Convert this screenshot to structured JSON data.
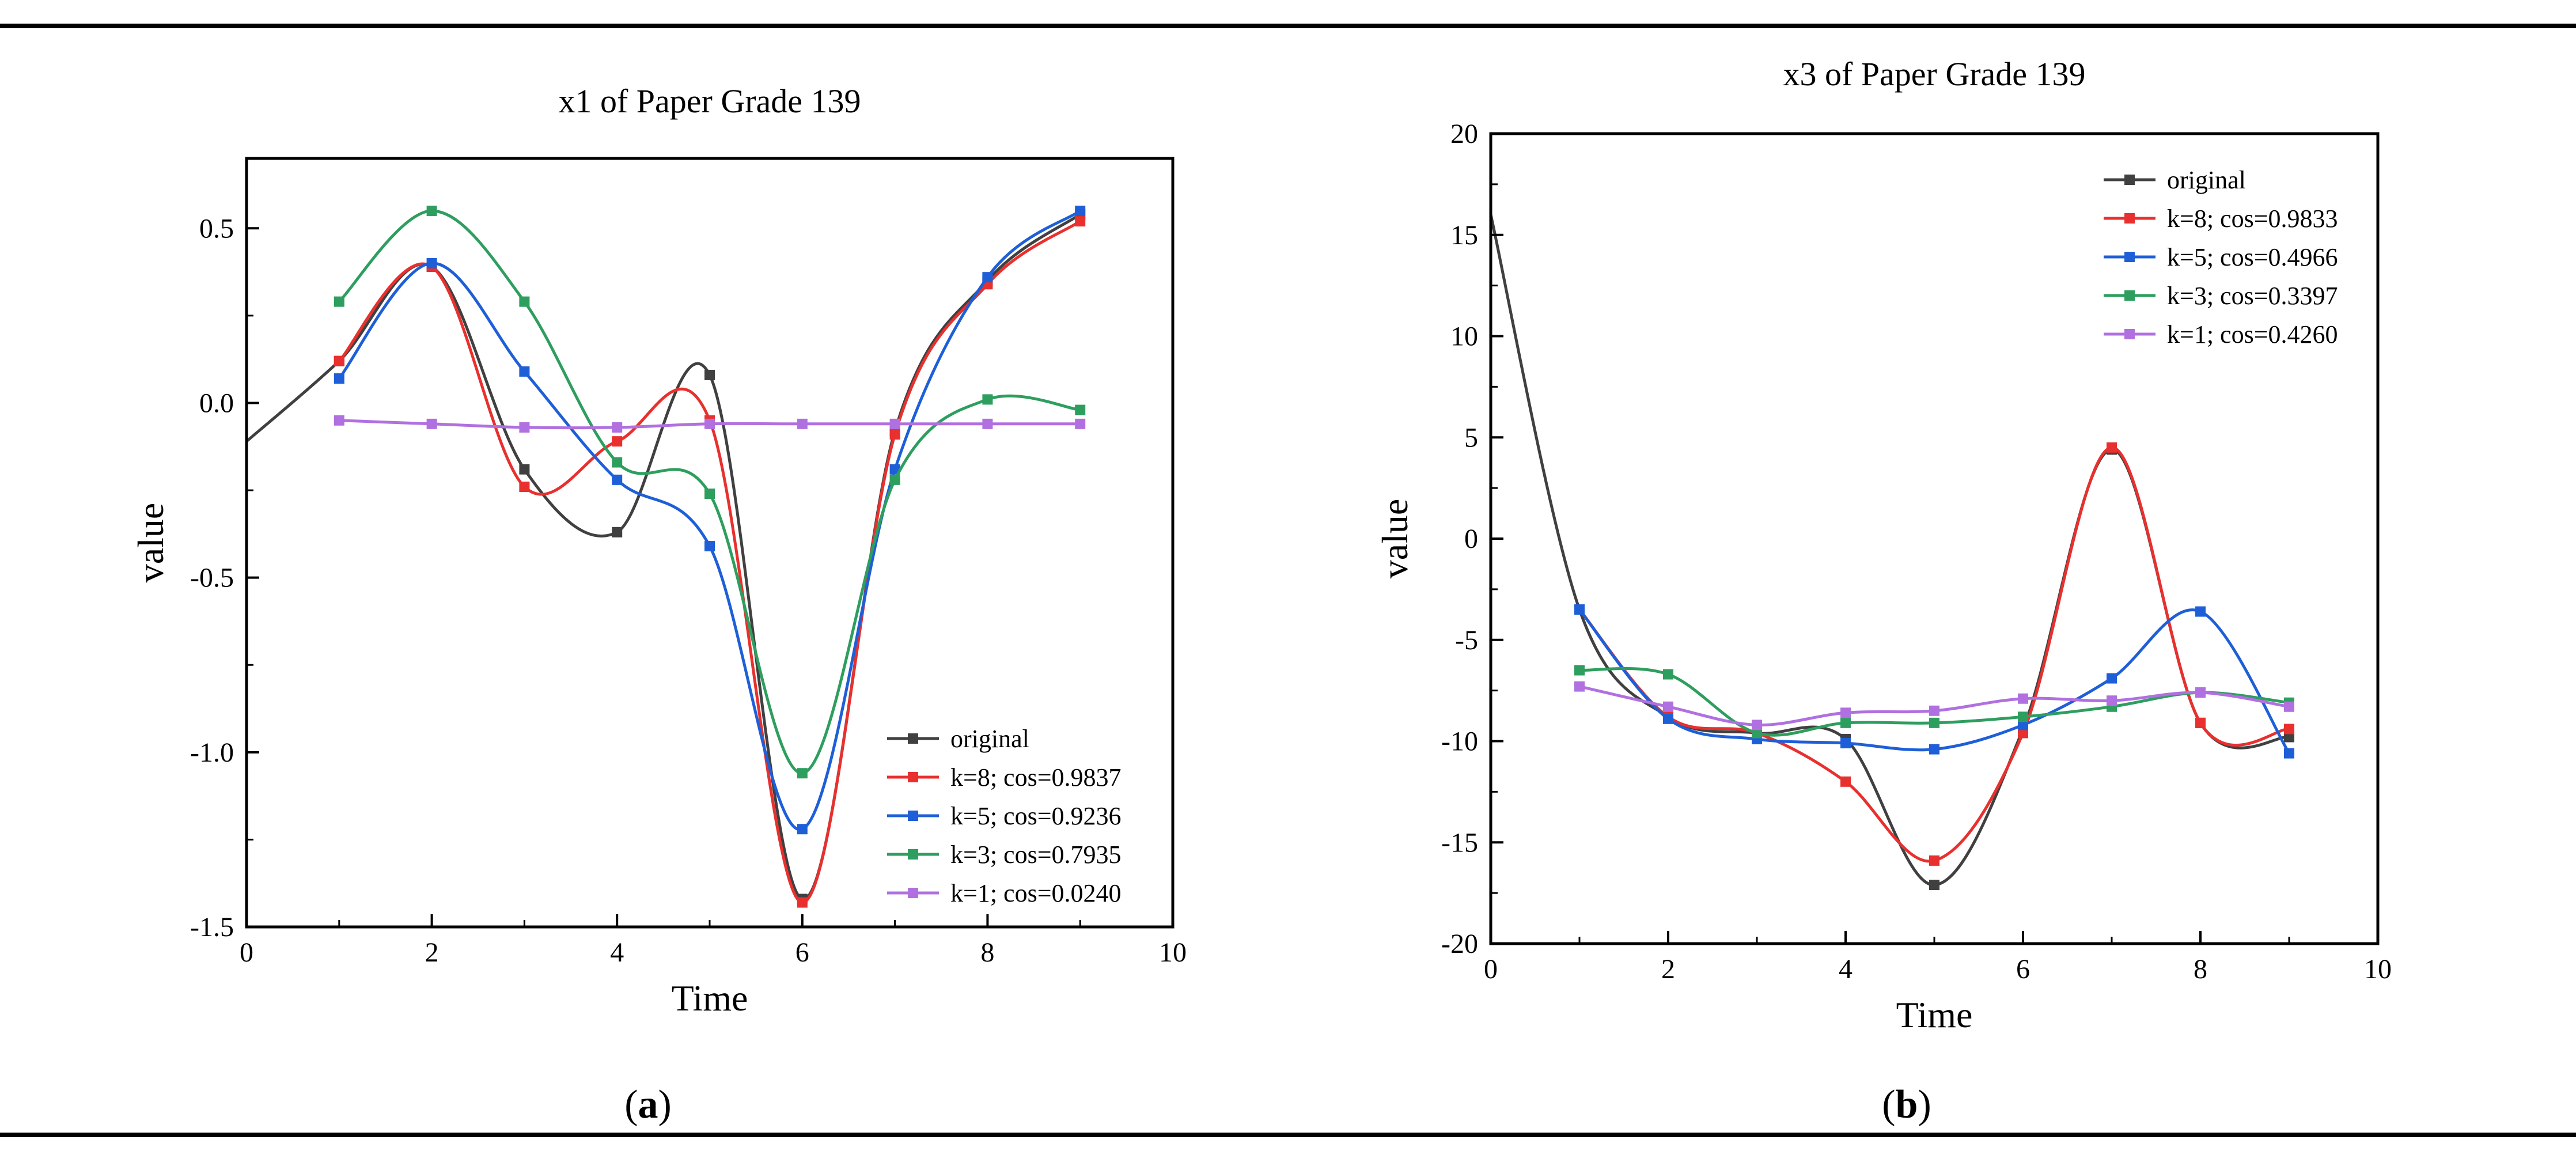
{
  "chart_data": [
    {
      "type": "line",
      "caption_letter": "a",
      "title": "x1 of Paper Grade 139",
      "xlabel": "Time",
      "ylabel": "value",
      "xlim": [
        0,
        10
      ],
      "ylim": [
        -1.5,
        0.7
      ],
      "xticks": [
        0,
        2,
        4,
        6,
        8,
        10
      ],
      "xtick_labels": [
        "0",
        "2",
        "4",
        "6",
        "8",
        "10"
      ],
      "yticks": [
        -1.5,
        -1.0,
        -0.5,
        0.0,
        0.5
      ],
      "ytick_labels": [
        "-1.5",
        "-1.0",
        "-0.5",
        "0.0",
        "0.5"
      ],
      "legend_position": "bottom-right",
      "series": [
        {
          "name": "original",
          "color": "#404040",
          "x": [
            0,
            1,
            2,
            3,
            4,
            5,
            6,
            7,
            8,
            9
          ],
          "y": [
            -0.11,
            0.12,
            0.39,
            -0.19,
            -0.37,
            0.08,
            -1.42,
            -0.08,
            0.35,
            0.54
          ]
        },
        {
          "name": "k=8; cos=0.9837",
          "color": "#e8302e",
          "x": [
            1,
            2,
            3,
            4,
            5,
            6,
            7,
            8,
            9
          ],
          "y": [
            0.12,
            0.39,
            -0.24,
            -0.11,
            -0.05,
            -1.43,
            -0.09,
            0.34,
            0.52
          ]
        },
        {
          "name": "k=5; cos=0.9236",
          "color": "#1e5fd8",
          "x": [
            1,
            2,
            3,
            4,
            5,
            6,
            7,
            8,
            9
          ],
          "y": [
            0.07,
            0.4,
            0.09,
            -0.22,
            -0.41,
            -1.22,
            -0.19,
            0.36,
            0.55
          ]
        },
        {
          "name": "k=3; cos=0.7935",
          "color": "#2e9e5e",
          "x": [
            1,
            2,
            3,
            4,
            5,
            6,
            7,
            8,
            9
          ],
          "y": [
            0.29,
            0.55,
            0.29,
            -0.17,
            -0.26,
            -1.06,
            -0.22,
            0.01,
            -0.02
          ]
        },
        {
          "name": "k=1; cos=0.0240",
          "color": "#b070e0",
          "x": [
            1,
            2,
            3,
            4,
            5,
            6,
            7,
            8,
            9
          ],
          "y": [
            -0.05,
            -0.06,
            -0.07,
            -0.07,
            -0.06,
            -0.06,
            -0.06,
            -0.06,
            -0.06
          ]
        }
      ]
    },
    {
      "type": "line",
      "caption_letter": "b",
      "title": "x3 of Paper Grade 139",
      "xlabel": "Time",
      "ylabel": "value",
      "xlim": [
        0,
        10
      ],
      "ylim": [
        -20,
        20
      ],
      "xticks": [
        0,
        2,
        4,
        6,
        8,
        10
      ],
      "xtick_labels": [
        "0",
        "2",
        "4",
        "6",
        "8",
        "10"
      ],
      "yticks": [
        -20,
        -15,
        -10,
        -5,
        0,
        5,
        10,
        15,
        20
      ],
      "ytick_labels": [
        "-20",
        "-15",
        "-10",
        "-5",
        "0",
        "5",
        "10",
        "15",
        "20"
      ],
      "legend_position": "top-right",
      "series": [
        {
          "name": "original",
          "color": "#404040",
          "x": [
            0,
            1,
            2,
            3,
            4,
            5,
            6,
            7,
            8,
            9
          ],
          "y": [
            16,
            -3.5,
            -8.8,
            -9.6,
            -9.9,
            -17.1,
            -9.4,
            4.4,
            -9.1,
            -9.8
          ]
        },
        {
          "name": "k=8; cos=0.9833",
          "color": "#e8302e",
          "x": [
            1,
            2,
            3,
            4,
            5,
            6,
            7,
            8,
            9
          ],
          "y": [
            -3.5,
            -8.8,
            -9.6,
            -12.0,
            -15.9,
            -9.6,
            4.5,
            -9.1,
            -9.4
          ]
        },
        {
          "name": "k=5; cos=0.4966",
          "color": "#1e5fd8",
          "x": [
            1,
            2,
            3,
            4,
            5,
            6,
            7,
            8,
            9
          ],
          "y": [
            -3.5,
            -8.9,
            -9.9,
            -10.1,
            -10.4,
            -9.2,
            -6.9,
            -3.6,
            -10.6
          ]
        },
        {
          "name": "k=3; cos=0.3397",
          "color": "#2e9e5e",
          "x": [
            1,
            2,
            3,
            4,
            5,
            6,
            7,
            8,
            9
          ],
          "y": [
            -6.5,
            -6.7,
            -9.6,
            -9.1,
            -9.1,
            -8.8,
            -8.3,
            -7.6,
            -8.1
          ]
        },
        {
          "name": "k=1; cos=0.4260",
          "color": "#b070e0",
          "x": [
            1,
            2,
            3,
            4,
            5,
            6,
            7,
            8,
            9
          ],
          "y": [
            -7.3,
            -8.3,
            -9.2,
            -8.6,
            -8.5,
            -7.9,
            -8.0,
            -7.6,
            -8.3
          ]
        }
      ]
    }
  ]
}
